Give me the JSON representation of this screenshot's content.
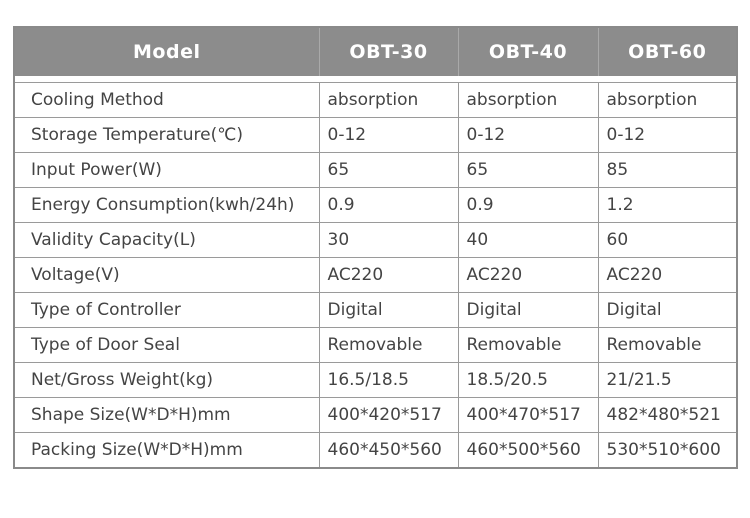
{
  "table": {
    "headers": [
      "Model",
      "OBT-30",
      "OBT-40",
      "OBT-60"
    ],
    "rows": [
      [
        "Cooling Method",
        "absorption",
        "absorption",
        "absorption"
      ],
      [
        "Storage Temperature(℃)",
        "0-12",
        "0-12",
        "0-12"
      ],
      [
        "Input Power(W)",
        "65",
        "65",
        "85"
      ],
      [
        "Energy Consumption(kwh/24h)",
        "0.9",
        "0.9",
        "1.2"
      ],
      [
        "Validity Capacity(L)",
        "30",
        "40",
        "60"
      ],
      [
        "Voltage(V)",
        "AC220",
        "AC220",
        "AC220"
      ],
      [
        "Type of Controller",
        "Digital",
        "Digital",
        "Digital"
      ],
      [
        "Type of Door Seal",
        "Removable",
        "Removable",
        "Removable"
      ],
      [
        "Net/Gross Weight(kg)",
        "16.5/18.5",
        "18.5/20.5",
        "21/21.5"
      ],
      [
        "Shape Size(W*D*H)mm",
        "400*420*517",
        "400*470*517",
        "482*480*521"
      ],
      [
        "Packing Size(W*D*H)mm",
        "460*450*560",
        "460*500*560",
        "530*510*600"
      ]
    ]
  },
  "colors": {
    "header_bg": "#8c8c8c",
    "header_text": "#ffffff",
    "border": "#9a9a9a",
    "cell_text": "#444444"
  }
}
